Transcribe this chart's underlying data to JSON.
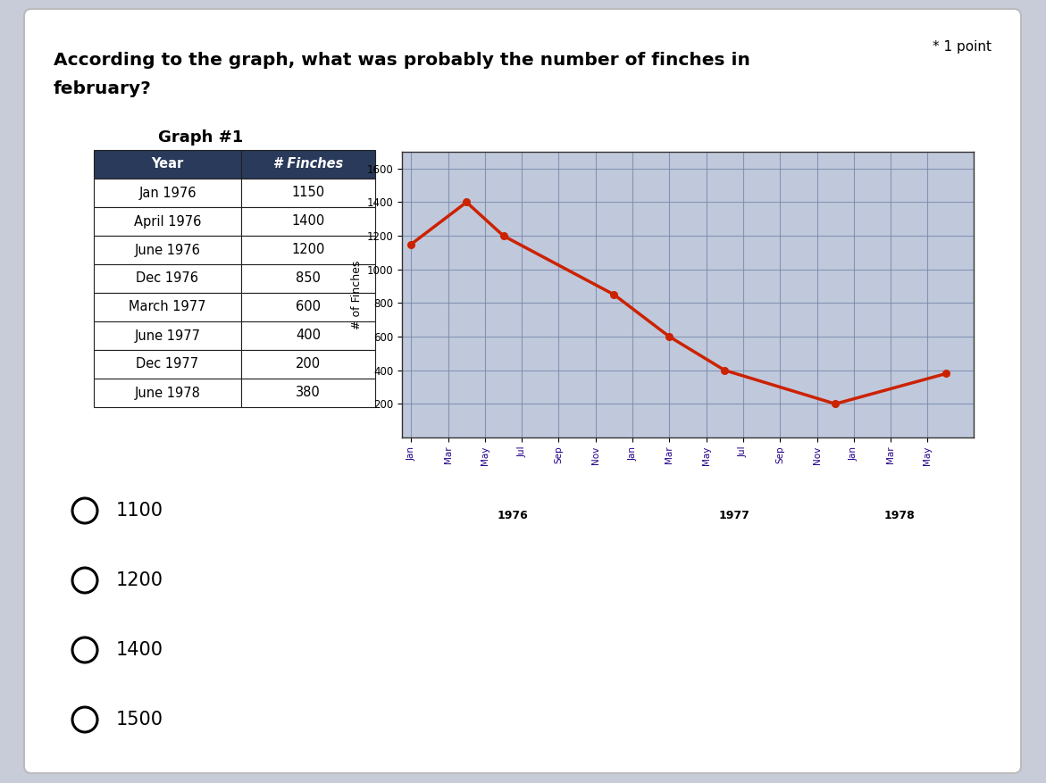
{
  "question_text": "According to the graph, what was probably the number of finches in",
  "question_text2": "february?",
  "point_text": "* 1 point",
  "graph_title": "Graph #1",
  "table_headers": [
    "Year",
    "# Finches"
  ],
  "table_data": [
    [
      "Jan 1976",
      "1150"
    ],
    [
      "April 1976",
      "1400"
    ],
    [
      "June 1976",
      "1200"
    ],
    [
      "Dec 1976",
      "850"
    ],
    [
      "March 1977",
      "600"
    ],
    [
      "June 1977",
      "400"
    ],
    [
      "Dec 1977",
      "200"
    ],
    [
      "June 1978",
      "380"
    ]
  ],
  "chart_ylabel": "# of Finches",
  "chart_yticks": [
    200,
    400,
    600,
    800,
    1000,
    1200,
    1400,
    1600
  ],
  "line_color": "#cc2200",
  "line_data_x": [
    0,
    3,
    5,
    11,
    14,
    17,
    23,
    29
  ],
  "line_data_y": [
    1150,
    1400,
    1200,
    850,
    600,
    400,
    200,
    380
  ],
  "background_color": "#c8ccd8",
  "white_panel": "#ffffff",
  "answer_choices": [
    "1100",
    "1200",
    "1400",
    "1500"
  ],
  "grid_color": "#7788aa",
  "chart_bg": "#c0c8dc",
  "header_bg": "#2a3a5a",
  "header_text": "#ffffff",
  "table_border": "#222222",
  "x_tick_positions": [
    0,
    2,
    4,
    6,
    8,
    10,
    12,
    14,
    16,
    18,
    20,
    22,
    24,
    26,
    28
  ],
  "x_tick_labels": [
    "Jan",
    "Mar",
    "May",
    "Jul",
    "Sep",
    "Nov",
    "Jan",
    "Mar",
    "May",
    "Jul",
    "Sep",
    "Nov",
    "Jan",
    "Mar",
    "May"
  ]
}
